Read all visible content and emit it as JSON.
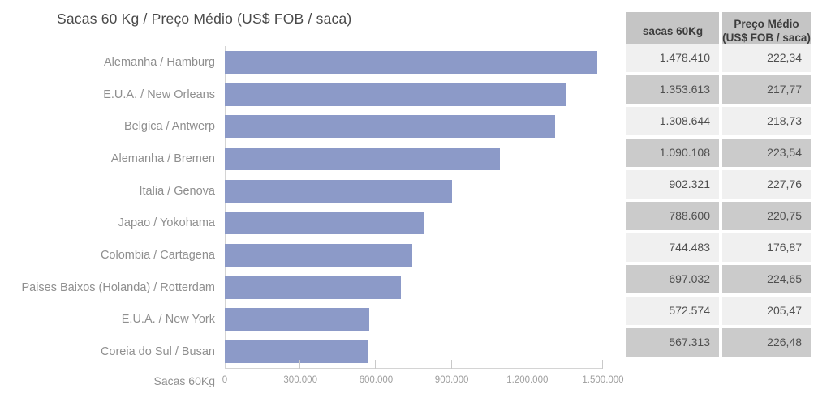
{
  "colors": {
    "bar": "#8c9ac8",
    "axis_line": "#d4d4d4",
    "tick_mark": "#c9c9c9",
    "title_text": "#4a4a4a",
    "label_text": "#8f8f8f",
    "tick_text": "#9e9e9e",
    "header_bg": "#c5c5c5",
    "row_odd_bg": "#f0f0f0",
    "row_even_bg": "#cbcbcb"
  },
  "chart_data": {
    "type": "bar",
    "orientation": "horizontal",
    "title": "Sacas 60 Kg / Preço Médio (US$ FOB / saca)",
    "xlabel": "Sacas 60Kg",
    "xlim": [
      0,
      1500000
    ],
    "x_tick_labels": [
      "0",
      "300.000",
      "600.000",
      "900.000",
      "1.200.000",
      "1.500.000"
    ],
    "grid": false,
    "legend": false,
    "categories": [
      "Alemanha / Hamburg",
      "E.U.A. / New Orleans",
      "Belgica / Antwerp",
      "Alemanha / Bremen",
      "Italia / Genova",
      "Japao / Yokohama",
      "Colombia / Cartagena",
      "Paises Baixos (Holanda) / Rotterdam",
      "E.U.A. / New York",
      "Coreia do Sul  / Busan"
    ],
    "series": [
      {
        "name": "sacas 60Kg",
        "values": [
          1478410,
          1353613,
          1308644,
          1090108,
          902321,
          788600,
          744483,
          697032,
          572574,
          567313
        ]
      },
      {
        "name": "Preço Médio (US$ FOB / saca)",
        "values": [
          222.34,
          217.77,
          218.73,
          223.54,
          227.76,
          220.75,
          176.87,
          224.65,
          205.47,
          226.48
        ]
      }
    ]
  },
  "table": {
    "headers": [
      {
        "lines": [
          "sacas 60Kg"
        ]
      },
      {
        "lines": [
          "Preço Médio",
          "(US$ FOB / saca)"
        ]
      }
    ],
    "rows": [
      [
        "1.478.410",
        "222,34"
      ],
      [
        "1.353.613",
        "217,77"
      ],
      [
        "1.308.644",
        "218,73"
      ],
      [
        "1.090.108",
        "223,54"
      ],
      [
        "902.321",
        "227,76"
      ],
      [
        "788.600",
        "220,75"
      ],
      [
        "744.483",
        "176,87"
      ],
      [
        "697.032",
        "224,65"
      ],
      [
        "572.574",
        "205,47"
      ],
      [
        "567.313",
        "226,48"
      ]
    ]
  }
}
